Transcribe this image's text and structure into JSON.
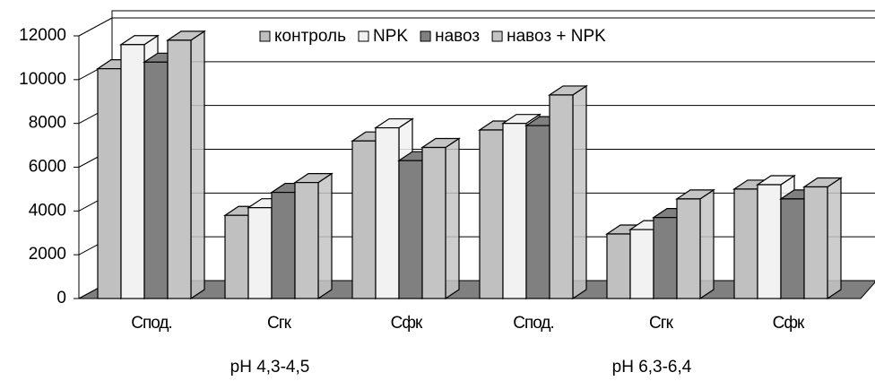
{
  "chart_data": {
    "type": "bar3d",
    "categories": [
      "Спод.",
      "Сгк",
      "Сфк",
      "Спод.",
      "Сгк",
      "Сфк"
    ],
    "group_labels": [
      "pH 4,3-4,5",
      "pH 6,3-6,4"
    ],
    "ylim": [
      0,
      12000
    ],
    "yticks": [
      0,
      2000,
      4000,
      6000,
      8000,
      10000,
      12000
    ],
    "grid": true,
    "legend": "top",
    "series": [
      {
        "name": "контроль",
        "color": "#c0c0c0",
        "values": [
          10500,
          3800,
          7200,
          7700,
          2950,
          5000
        ]
      },
      {
        "name": "NPK",
        "color": "#f2f2f2",
        "values": [
          11600,
          4150,
          7800,
          8000,
          3150,
          5200
        ]
      },
      {
        "name": "навоз",
        "color": "#808080",
        "values": [
          10800,
          4850,
          6300,
          7900,
          3700,
          4550
        ]
      },
      {
        "name": "навоз + NPK",
        "color": "#c4c4c4",
        "values": [
          11800,
          5300,
          6900,
          9300,
          4550,
          5100
        ]
      }
    ]
  }
}
